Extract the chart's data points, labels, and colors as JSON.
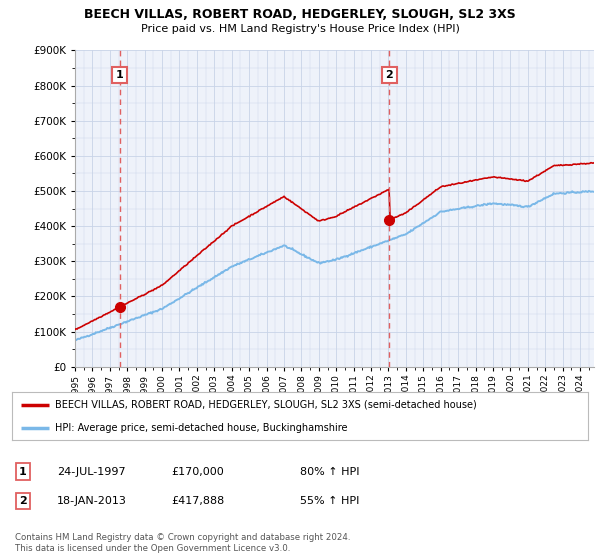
{
  "title": "BEECH VILLAS, ROBERT ROAD, HEDGERLEY, SLOUGH, SL2 3XS",
  "subtitle": "Price paid vs. HM Land Registry's House Price Index (HPI)",
  "legend_line1": "BEECH VILLAS, ROBERT ROAD, HEDGERLEY, SLOUGH, SL2 3XS (semi-detached house)",
  "legend_line2": "HPI: Average price, semi-detached house, Buckinghamshire",
  "annotation1": {
    "label": "1",
    "date": "24-JUL-1997",
    "price": "£170,000",
    "hpi": "80% ↑ HPI"
  },
  "annotation2": {
    "label": "2",
    "date": "18-JAN-2013",
    "price": "£417,888",
    "hpi": "55% ↑ HPI"
  },
  "footer": "Contains HM Land Registry data © Crown copyright and database right 2024.\nThis data is licensed under the Open Government Licence v3.0.",
  "sale1_x": 1997.56,
  "sale1_y": 170000,
  "sale2_x": 2013.05,
  "sale2_y": 417888,
  "ylim": [
    0,
    900000
  ],
  "xlim_start": 1995.0,
  "xlim_end": 2024.8,
  "hpi_color": "#7ab8e8",
  "price_color": "#cc0000",
  "vline_color": "#e06060",
  "grid_color": "#c8d4e8",
  "background_color": "#eef2fa"
}
